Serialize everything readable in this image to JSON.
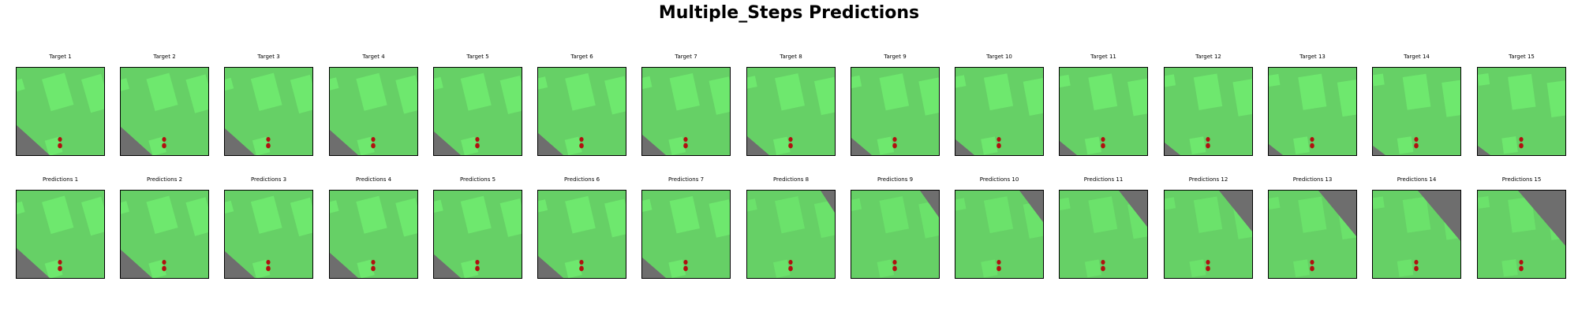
{
  "title": "Multiple_Steps Predictions",
  "targets": [
    {
      "label": "Target 1"
    },
    {
      "label": "Target 2"
    },
    {
      "label": "Target 3"
    },
    {
      "label": "Target 4"
    },
    {
      "label": "Target 5"
    },
    {
      "label": "Target 6"
    },
    {
      "label": "Target 7"
    },
    {
      "label": "Target 8"
    },
    {
      "label": "Target 9"
    },
    {
      "label": "Target 10"
    },
    {
      "label": "Target 11"
    },
    {
      "label": "Target 12"
    },
    {
      "label": "Target 13"
    },
    {
      "label": "Target 14"
    },
    {
      "label": "Target 15"
    }
  ],
  "predictions": [
    {
      "label": "Predictions 1"
    },
    {
      "label": "Predictions 2"
    },
    {
      "label": "Predictions 3"
    },
    {
      "label": "Predictions 4"
    },
    {
      "label": "Predictions 5"
    },
    {
      "label": "Predictions 6"
    },
    {
      "label": "Predictions 7"
    },
    {
      "label": "Predictions 8"
    },
    {
      "label": "Predictions 9"
    },
    {
      "label": "Predictions 10"
    },
    {
      "label": "Predictions 11"
    },
    {
      "label": "Predictions 12"
    },
    {
      "label": "Predictions 13"
    },
    {
      "label": "Predictions 14"
    },
    {
      "label": "Predictions 15"
    }
  ],
  "colors": {
    "ground": "#66d066",
    "building": "#6ee86e",
    "road": "#6e6e6e",
    "agent": "#b01010"
  }
}
